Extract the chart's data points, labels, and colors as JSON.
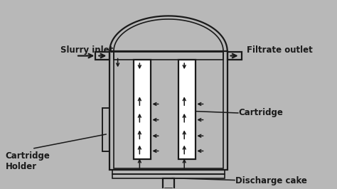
{
  "bg_color": "#b8b8b8",
  "line_color": "#1a1a1a",
  "lw": 1.6,
  "labels": {
    "slurry_inlet": "Slurry inlet",
    "filtrate_outlet": "Filtrate outlet",
    "cartridge": "Cartridge",
    "cartridge_holder": "Cartridge\nHolder",
    "discharge_cake": "Discharge cake"
  },
  "figsize": [
    4.74,
    2.66
  ],
  "dpi": 100,
  "xlim": [
    0,
    10
  ],
  "ylim": [
    0,
    5.61
  ]
}
